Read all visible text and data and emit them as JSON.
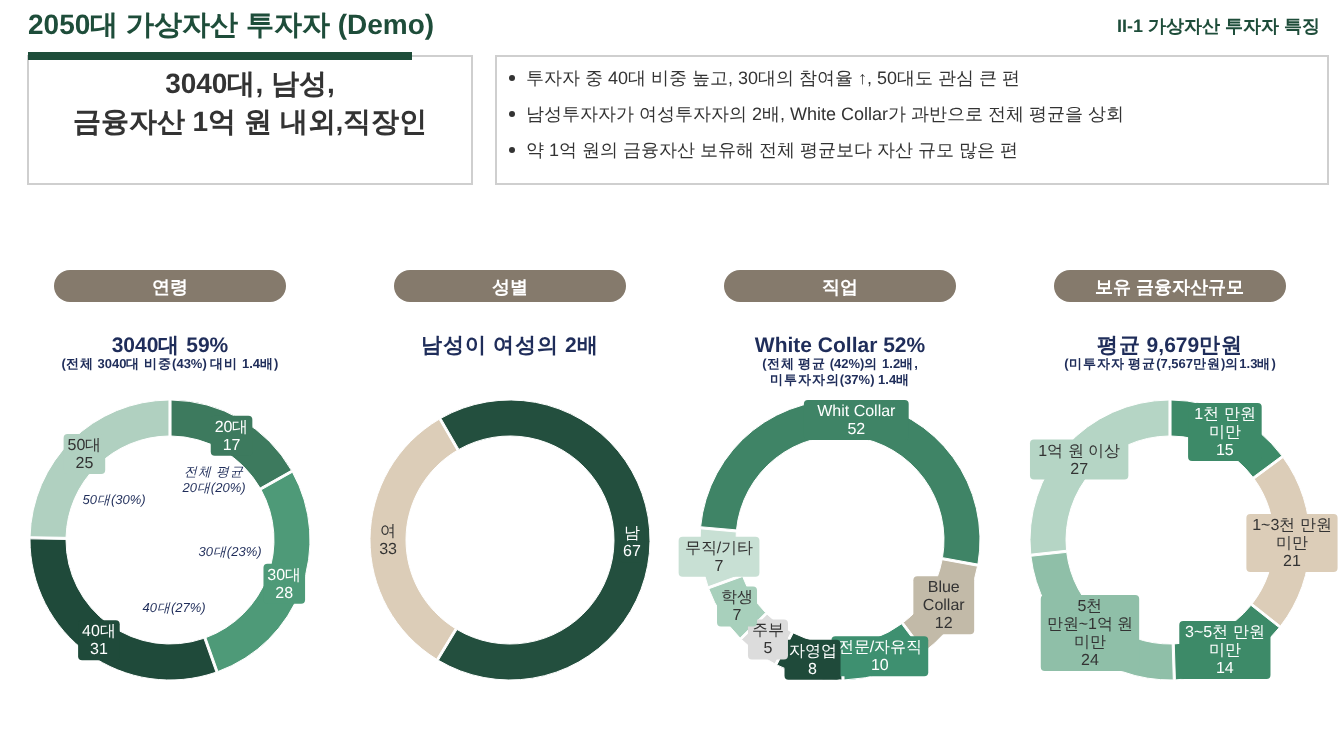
{
  "chart_data": [
    {
      "type": "other",
      "title": "2050대 가상자산 투자자 (Demo)",
      "subtitle": "II-1 가상자산 투자자 특징",
      "annotations": [
        "3040대, 남성,\n금융자산 1억 원 내외,직장인",
        "투자자 중 40대 비중 높고, 30대의 참여율 ↑, 50대도 관심 큰 편",
        "남성투자자가 여성투자자의 2배, White Collar가 과반으로 전체 평균을 상회",
        "약 1억 원의 금융자산 보유해 전체 평균보다 자산 규모 많은 편"
      ]
    },
    {
      "type": "donut",
      "title": "연령",
      "subtitle": "3040대 59%",
      "annotations": [
        "(전체 3040대 비중(43%) 대비 1.4배)",
        "전체 평균\n20대(20%)",
        "30대(23%)",
        "40대(27%)",
        "50대(30%)"
      ],
      "categories": [
        "20대",
        "30대",
        "40대",
        "50대"
      ],
      "values": [
        17,
        28,
        31,
        25
      ],
      "colors": [
        "#3d7a5e",
        "#4e9a78",
        "#1f4a3a",
        "#b0d0c0"
      ],
      "data_labels": true
    },
    {
      "type": "donut",
      "title": "성별",
      "subtitle": "남성이 여성의 2배",
      "categories": [
        "남",
        "여"
      ],
      "values": [
        67,
        33
      ],
      "colors": [
        "#234f3e",
        "#dccdb8"
      ],
      "data_labels": true
    },
    {
      "type": "donut",
      "title": "직업",
      "subtitle": "White Collar 52%",
      "annotations": [
        "(전체 평균 (42%)의 1.2배,",
        "미투자자의(37%) 1.4배"
      ],
      "categories": [
        "Whit Collar",
        "Blue Collar",
        "전문/자유직",
        "자영업",
        "주부",
        "학생",
        "무직/기타"
      ],
      "values": [
        52,
        12,
        10,
        8,
        5,
        7,
        7
      ],
      "colors": [
        "#3f8466",
        "#c2baa8",
        "#3e9070",
        "#1f4a3a",
        "#dcdcdc",
        "#a8d0bc",
        "#c8e0d4"
      ],
      "data_labels": true
    },
    {
      "type": "donut",
      "title": "보유 금융자산규모",
      "subtitle": "평균  9,679만원",
      "annotations": [
        "(미투자자 평균(7,567만원)의1.3배)"
      ],
      "categories": [
        "1천 만원 미만",
        "1~3천 만원 미만",
        "3~5천 만원 미만",
        "5천 만원~1억 원 미만",
        "1억 원 이상"
      ],
      "values": [
        15,
        21,
        14,
        24,
        27
      ],
      "colors": [
        "#3d8a68",
        "#dccdb8",
        "#3d8a68",
        "#8fbfa8",
        "#b5d5c5"
      ],
      "data_labels": true
    }
  ]
}
